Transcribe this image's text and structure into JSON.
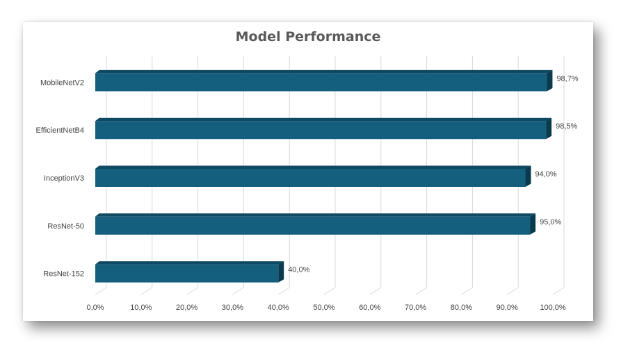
{
  "chart_data": {
    "type": "bar",
    "orientation": "horizontal",
    "title": "Model Performance",
    "categories": [
      "MobileNetV2",
      "EfficientNetB4",
      "InceptionV3",
      "ResNet-50",
      "ResNet-152"
    ],
    "values": [
      98.7,
      98.5,
      94.0,
      95.0,
      40.0
    ],
    "data_labels": [
      "98,7%",
      "98,5%",
      "94,0%",
      "95,0%",
      "40,0%"
    ],
    "x_ticks": [
      "0,0%",
      "10,0%",
      "20,0%",
      "30,0%",
      "40,0%",
      "50,0%",
      "60,0%",
      "70,0%",
      "80,0%",
      "90,0%",
      "100,0%"
    ],
    "xlim": [
      0,
      100
    ],
    "grid": true,
    "style": "3d",
    "colors": {
      "bar_front": "#155f7e",
      "bar_top": "#0f4a63",
      "bar_side": "#0b394d",
      "grid": "#d9d9d9"
    }
  }
}
